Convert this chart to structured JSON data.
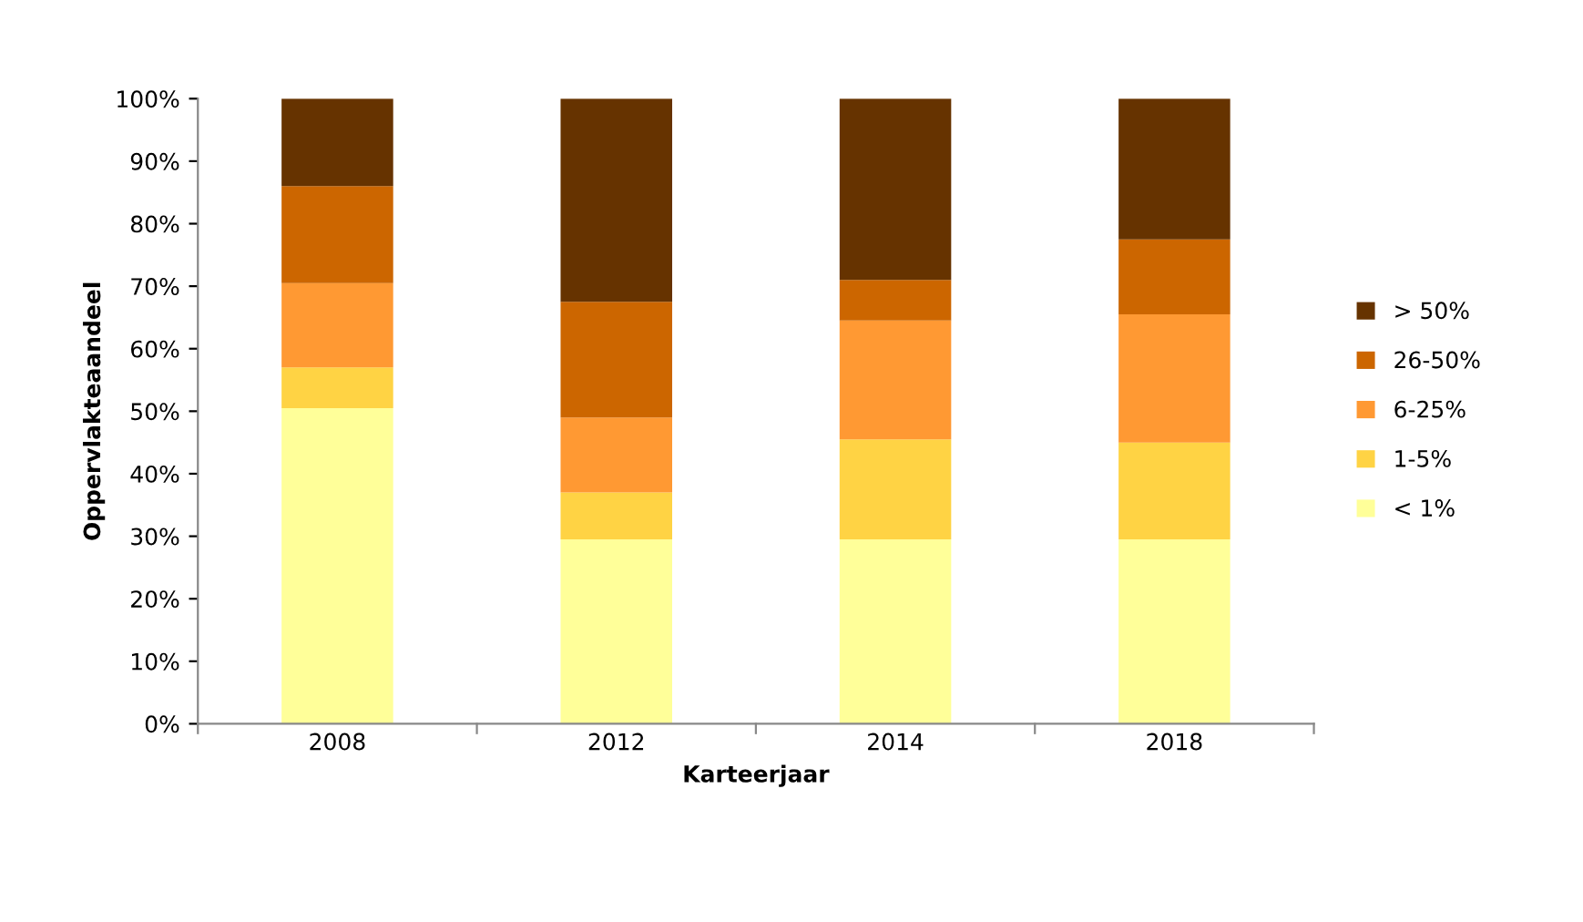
{
  "chart_data": {
    "type": "bar",
    "stacked": true,
    "xlabel": "Karteerjaar",
    "ylabel": "Oppervlakteaandeel",
    "categories": [
      "2008",
      "2012",
      "2014",
      "2018"
    ],
    "series": [
      {
        "name": "< 1%",
        "color": "#ffff99",
        "values": [
          50.5,
          29.5,
          29.5,
          29.5
        ]
      },
      {
        "name": "1-5%",
        "color": "#ffd344",
        "values": [
          6.5,
          7.5,
          16,
          15.5
        ]
      },
      {
        "name": "6-25%",
        "color": "#ff9933",
        "values": [
          13.5,
          12,
          19,
          20.5
        ]
      },
      {
        "name": "26-50%",
        "color": "#cc6600",
        "values": [
          15.5,
          18.5,
          6.5,
          12
        ]
      },
      {
        "name": "> 50%",
        "color": "#663300",
        "values": [
          14,
          32.5,
          29,
          22.5
        ]
      }
    ],
    "ylim": [
      0,
      100
    ],
    "yticks": [
      {
        "value": 0,
        "label": "0%"
      },
      {
        "value": 10,
        "label": "10%"
      },
      {
        "value": 20,
        "label": "20%"
      },
      {
        "value": 30,
        "label": "30%"
      },
      {
        "value": 40,
        "label": "40%"
      },
      {
        "value": 50,
        "label": "50%"
      },
      {
        "value": 60,
        "label": "60%"
      },
      {
        "value": 70,
        "label": "70%"
      },
      {
        "value": 80,
        "label": "80%"
      },
      {
        "value": 90,
        "label": "90%"
      },
      {
        "value": 100,
        "label": "100%"
      }
    ],
    "grid": false,
    "legend": "right"
  }
}
